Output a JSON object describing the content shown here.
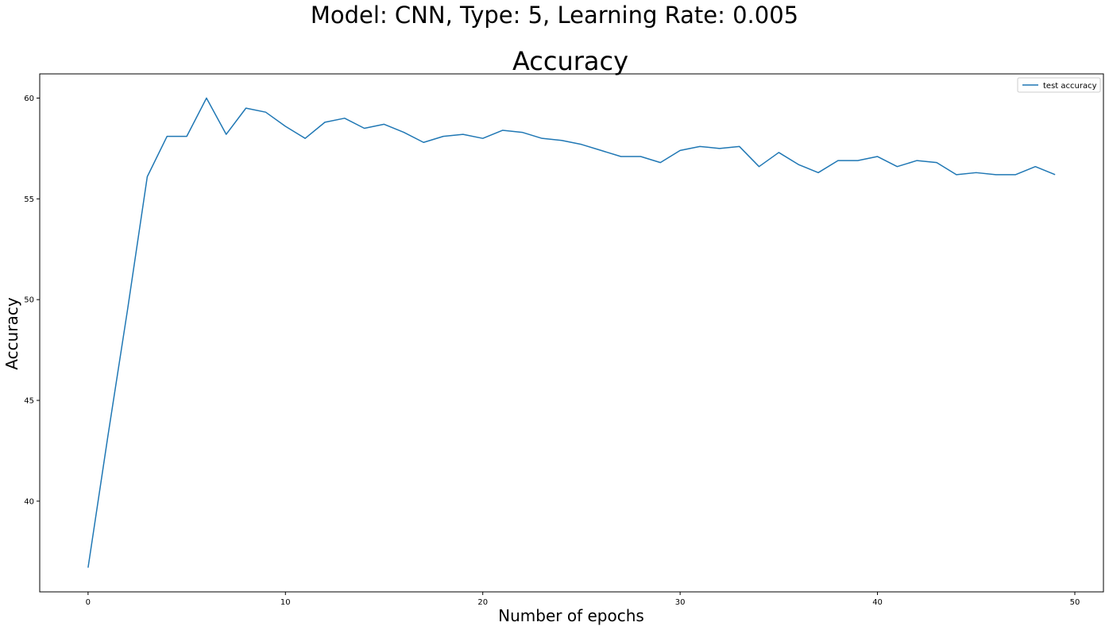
{
  "figure": {
    "suptitle": "Model: CNN, Type: 5, Learning Rate: 0.005"
  },
  "chart_data": {
    "type": "line",
    "title": "Accuracy",
    "xlabel": "Number of epochs",
    "ylabel": "Accuracy",
    "xlim": [
      -2.45,
      51.45
    ],
    "ylim": [
      35.5,
      61.2
    ],
    "xticks": [
      0,
      10,
      20,
      30,
      40,
      50
    ],
    "yticks": [
      40,
      45,
      50,
      55,
      60
    ],
    "grid": false,
    "legend_position": "top-right",
    "series": [
      {
        "name": "test accuracy",
        "color": "#1f77b4",
        "x": [
          0,
          1,
          2,
          3,
          4,
          5,
          6,
          7,
          8,
          9,
          10,
          11,
          12,
          13,
          14,
          15,
          16,
          17,
          18,
          19,
          20,
          21,
          22,
          23,
          24,
          25,
          26,
          27,
          28,
          29,
          30,
          31,
          32,
          33,
          34,
          35,
          36,
          37,
          38,
          39,
          40,
          41,
          42,
          43,
          44,
          45,
          46,
          47,
          48,
          49
        ],
        "values": [
          36.7,
          43.2,
          49.5,
          56.1,
          58.1,
          58.1,
          60.0,
          58.2,
          59.5,
          59.3,
          58.6,
          58.0,
          58.8,
          59.0,
          58.5,
          58.7,
          58.3,
          57.8,
          58.1,
          58.2,
          58.0,
          58.4,
          58.3,
          58.0,
          57.9,
          57.7,
          57.4,
          57.1,
          57.1,
          56.8,
          57.4,
          57.6,
          57.5,
          57.6,
          56.6,
          57.3,
          56.7,
          56.3,
          56.9,
          56.9,
          57.1,
          56.6,
          56.9,
          56.8,
          56.2,
          56.3,
          56.2,
          56.2,
          56.6,
          56.2
        ]
      }
    ]
  }
}
